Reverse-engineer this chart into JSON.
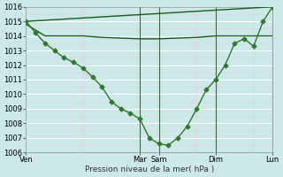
{
  "bg_color": "#cce8e8",
  "grid_major_color": "#ffffff",
  "grid_minor_color": "#ddeedd",
  "line_color_dark": "#1a5c1a",
  "line_color_mid": "#2d7a2d",
  "xlabel": "Pression niveau de la mer( hPa )",
  "ylim": [
    1006,
    1016
  ],
  "yticks": [
    1006,
    1007,
    1008,
    1009,
    1010,
    1011,
    1012,
    1013,
    1014,
    1015,
    1016
  ],
  "xtick_labels": [
    "Ven",
    "Mar",
    "Sam",
    "Dim",
    "Lun"
  ],
  "xtick_positions": [
    0,
    12,
    14,
    20,
    26
  ],
  "vlines": [
    12,
    14,
    20,
    26
  ],
  "xlim": [
    0,
    26
  ],
  "series_flat": {
    "x": [
      0,
      2,
      4,
      6,
      8,
      10,
      12,
      14,
      16,
      18,
      20,
      22,
      24,
      26
    ],
    "y": [
      1014.8,
      1014.0,
      1014.0,
      1014.0,
      1013.9,
      1013.85,
      1013.8,
      1013.8,
      1013.85,
      1013.9,
      1014.0,
      1014.0,
      1014.0,
      1014.0
    ]
  },
  "series_diag": {
    "x": [
      0,
      26
    ],
    "y": [
      1015.0,
      1016.0
    ]
  },
  "series_main": {
    "x": [
      0,
      1,
      2,
      3,
      4,
      5,
      6,
      7,
      8,
      9,
      10,
      11,
      12,
      13,
      14,
      15,
      16,
      17,
      18,
      19,
      20,
      21,
      22,
      23,
      24,
      25,
      26
    ],
    "y": [
      1015.0,
      1014.2,
      1013.5,
      1013.0,
      1012.5,
      1012.2,
      1011.8,
      1011.2,
      1010.5,
      1009.5,
      1009.0,
      1008.7,
      1008.3,
      1007.0,
      1006.6,
      1006.5,
      1007.0,
      1007.8,
      1009.0,
      1010.3,
      1011.0,
      1012.0,
      1013.5,
      1013.8,
      1013.3,
      1015.0,
      1016.0
    ]
  }
}
